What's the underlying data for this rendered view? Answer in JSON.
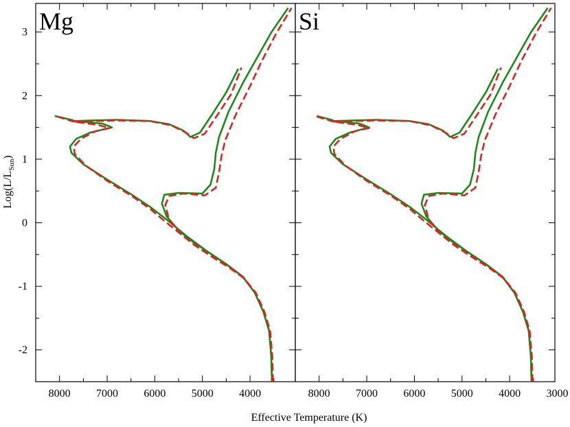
{
  "chart_data": [
    {
      "type": "line",
      "title": "Mg",
      "xlabel": "Effective Temperature (K)",
      "ylabel": "Log(L/L_Sun)",
      "ylabel_parts": {
        "pre": "Log(L/L",
        "sub": "Sun",
        "post": ")"
      },
      "xlim": [
        8500,
        3050
      ],
      "ylim": [
        -2.5,
        3.45
      ],
      "x_ticks": [
        8000,
        7000,
        6000,
        5000,
        4000
      ],
      "y_ticks": [
        -2,
        -1,
        0,
        1,
        2,
        3
      ],
      "x_ticklabels": [
        "8000",
        "7000",
        "6000",
        "5000",
        "4000"
      ],
      "y_ticklabels": [
        "-2",
        "-1",
        "0",
        "1",
        "2",
        "3"
      ],
      "grid": false,
      "series": [
        {
          "color": "#1a8a1a",
          "dash": "solid",
          "points": [
            [
              3540,
              -2.5
            ],
            [
              3555,
              -2.1
            ],
            [
              3600,
              -1.7
            ],
            [
              3720,
              -1.4
            ],
            [
              3900,
              -1.1
            ],
            [
              4150,
              -0.85
            ],
            [
              4500,
              -0.65
            ],
            [
              4900,
              -0.45
            ],
            [
              5350,
              -0.2
            ],
            [
              5750,
              0.05
            ],
            [
              6100,
              0.25
            ],
            [
              6500,
              0.45
            ],
            [
              7000,
              0.68
            ],
            [
              7500,
              0.92
            ],
            [
              7750,
              1.1
            ],
            [
              7780,
              1.2
            ],
            [
              7650,
              1.32
            ],
            [
              7350,
              1.42
            ],
            [
              6900,
              1.5
            ],
            [
              7100,
              1.56
            ],
            [
              7700,
              1.6
            ],
            [
              6800,
              1.62
            ],
            [
              6100,
              1.6
            ],
            [
              5700,
              1.55
            ],
            [
              5400,
              1.45
            ],
            [
              5250,
              1.35
            ],
            [
              5050,
              1.42
            ],
            [
              4800,
              1.7
            ],
            [
              4500,
              2.05
            ],
            [
              4250,
              2.42
            ]
          ]
        },
        {
          "color": "#1a8a1a",
          "dash": "solid",
          "points": [
            [
              8100,
              1.68
            ],
            [
              7700,
              1.61
            ]
          ]
        },
        {
          "color": "#1a8a1a",
          "dash": "solid",
          "points": [
            [
              3540,
              -2.5
            ],
            [
              3555,
              -2.1
            ],
            [
              3600,
              -1.7
            ],
            [
              3720,
              -1.4
            ],
            [
              3900,
              -1.1
            ],
            [
              4150,
              -0.85
            ],
            [
              4500,
              -0.65
            ],
            [
              4800,
              -0.5
            ],
            [
              5200,
              -0.3
            ],
            [
              5500,
              -0.12
            ],
            [
              5750,
              0.1
            ],
            [
              5850,
              0.3
            ],
            [
              5800,
              0.44
            ],
            [
              5500,
              0.47
            ],
            [
              5000,
              0.46
            ],
            [
              4830,
              0.6
            ],
            [
              4750,
              0.85
            ],
            [
              4720,
              1.1
            ],
            [
              4650,
              1.35
            ],
            [
              4450,
              1.75
            ],
            [
              4150,
              2.2
            ],
            [
              3850,
              2.6
            ],
            [
              3550,
              3.0
            ],
            [
              3200,
              3.38
            ]
          ]
        },
        {
          "color": "#dd2222",
          "dash": "dashed",
          "points": [
            [
              3520,
              -2.5
            ],
            [
              3535,
              -2.1
            ],
            [
              3580,
              -1.7
            ],
            [
              3700,
              -1.4
            ],
            [
              3880,
              -1.1
            ],
            [
              4150,
              -0.85
            ],
            [
              4500,
              -0.67
            ],
            [
              4900,
              -0.48
            ],
            [
              5350,
              -0.24
            ],
            [
              5750,
              0.0
            ],
            [
              6100,
              0.22
            ],
            [
              6500,
              0.43
            ],
            [
              7000,
              0.66
            ],
            [
              7450,
              0.9
            ],
            [
              7680,
              1.08
            ],
            [
              7700,
              1.2
            ],
            [
              7550,
              1.32
            ],
            [
              7250,
              1.44
            ],
            [
              6950,
              1.49
            ],
            [
              7200,
              1.54
            ],
            [
              7700,
              1.59
            ],
            [
              6800,
              1.61
            ],
            [
              6100,
              1.6
            ],
            [
              5650,
              1.53
            ],
            [
              5350,
              1.42
            ],
            [
              5180,
              1.33
            ],
            [
              4950,
              1.4
            ],
            [
              4700,
              1.68
            ],
            [
              4400,
              2.02
            ],
            [
              4180,
              2.44
            ]
          ]
        },
        {
          "color": "#dd2222",
          "dash": "dashed",
          "points": [
            [
              8050,
              1.67
            ],
            [
              7700,
              1.59
            ]
          ]
        },
        {
          "color": "#dd2222",
          "dash": "dashed",
          "points": [
            [
              3520,
              -2.5
            ],
            [
              3535,
              -2.1
            ],
            [
              3580,
              -1.7
            ],
            [
              3700,
              -1.4
            ],
            [
              3880,
              -1.1
            ],
            [
              4150,
              -0.86
            ],
            [
              4450,
              -0.7
            ],
            [
              4750,
              -0.56
            ],
            [
              5150,
              -0.36
            ],
            [
              5450,
              -0.18
            ],
            [
              5700,
              0.05
            ],
            [
              5780,
              0.28
            ],
            [
              5700,
              0.42
            ],
            [
              5400,
              0.46
            ],
            [
              4950,
              0.43
            ],
            [
              4720,
              0.55
            ],
            [
              4650,
              0.8
            ],
            [
              4600,
              1.05
            ],
            [
              4520,
              1.3
            ],
            [
              4300,
              1.7
            ],
            [
              4000,
              2.15
            ],
            [
              3750,
              2.55
            ],
            [
              3450,
              2.98
            ],
            [
              3130,
              3.38
            ]
          ]
        }
      ]
    },
    {
      "type": "line",
      "title": "Si",
      "xlabel": "Effective Temperature (K)",
      "xlim": [
        8500,
        3050
      ],
      "ylim": [
        -2.5,
        3.45
      ],
      "x_ticks": [
        8000,
        7000,
        6000,
        5000,
        4000,
        3000
      ],
      "x_ticklabels": [
        "8000",
        "7000",
        "6000",
        "5000",
        "4000",
        "3000"
      ],
      "grid": false,
      "series": [
        {
          "color": "#1a8a1a",
          "dash": "solid",
          "points": [
            [
              3540,
              -2.5
            ],
            [
              3555,
              -2.1
            ],
            [
              3600,
              -1.7
            ],
            [
              3720,
              -1.4
            ],
            [
              3900,
              -1.1
            ],
            [
              4150,
              -0.85
            ],
            [
              4500,
              -0.65
            ],
            [
              4900,
              -0.45
            ],
            [
              5350,
              -0.2
            ],
            [
              5750,
              0.05
            ],
            [
              6100,
              0.25
            ],
            [
              6500,
              0.45
            ],
            [
              7000,
              0.68
            ],
            [
              7500,
              0.92
            ],
            [
              7750,
              1.1
            ],
            [
              7780,
              1.2
            ],
            [
              7650,
              1.32
            ],
            [
              7350,
              1.42
            ],
            [
              6950,
              1.5
            ],
            [
              7150,
              1.56
            ],
            [
              7700,
              1.6
            ],
            [
              6800,
              1.62
            ],
            [
              6100,
              1.6
            ],
            [
              5700,
              1.55
            ],
            [
              5400,
              1.45
            ],
            [
              5250,
              1.35
            ],
            [
              5050,
              1.42
            ],
            [
              4800,
              1.7
            ],
            [
              4500,
              2.05
            ],
            [
              4250,
              2.42
            ]
          ]
        },
        {
          "color": "#1a8a1a",
          "dash": "solid",
          "points": [
            [
              8050,
              1.68
            ],
            [
              7700,
              1.61
            ]
          ]
        },
        {
          "color": "#1a8a1a",
          "dash": "solid",
          "points": [
            [
              3540,
              -2.5
            ],
            [
              3555,
              -2.1
            ],
            [
              3600,
              -1.7
            ],
            [
              3720,
              -1.4
            ],
            [
              3900,
              -1.1
            ],
            [
              4150,
              -0.85
            ],
            [
              4500,
              -0.65
            ],
            [
              4800,
              -0.5
            ],
            [
              5200,
              -0.3
            ],
            [
              5500,
              -0.12
            ],
            [
              5750,
              0.1
            ],
            [
              5850,
              0.3
            ],
            [
              5800,
              0.44
            ],
            [
              5500,
              0.47
            ],
            [
              5000,
              0.46
            ],
            [
              4830,
              0.6
            ],
            [
              4750,
              0.85
            ],
            [
              4720,
              1.1
            ],
            [
              4650,
              1.35
            ],
            [
              4450,
              1.75
            ],
            [
              4150,
              2.2
            ],
            [
              3850,
              2.6
            ],
            [
              3550,
              3.0
            ],
            [
              3200,
              3.38
            ]
          ]
        },
        {
          "color": "#dd2222",
          "dash": "dashed",
          "points": [
            [
              3520,
              -2.5
            ],
            [
              3535,
              -2.1
            ],
            [
              3580,
              -1.7
            ],
            [
              3700,
              -1.4
            ],
            [
              3880,
              -1.1
            ],
            [
              4150,
              -0.85
            ],
            [
              4500,
              -0.67
            ],
            [
              4900,
              -0.48
            ],
            [
              5350,
              -0.24
            ],
            [
              5750,
              0.0
            ],
            [
              6100,
              0.22
            ],
            [
              6500,
              0.43
            ],
            [
              7000,
              0.66
            ],
            [
              7450,
              0.9
            ],
            [
              7680,
              1.08
            ],
            [
              7700,
              1.2
            ],
            [
              7550,
              1.32
            ],
            [
              7250,
              1.44
            ],
            [
              6950,
              1.49
            ],
            [
              7200,
              1.54
            ],
            [
              7700,
              1.59
            ],
            [
              6800,
              1.61
            ],
            [
              6100,
              1.6
            ],
            [
              5650,
              1.53
            ],
            [
              5350,
              1.42
            ],
            [
              5180,
              1.33
            ],
            [
              4950,
              1.4
            ],
            [
              4700,
              1.68
            ],
            [
              4400,
              2.02
            ],
            [
              4180,
              2.44
            ]
          ]
        },
        {
          "color": "#dd2222",
          "dash": "dashed",
          "points": [
            [
              8050,
              1.67
            ],
            [
              7700,
              1.59
            ]
          ]
        },
        {
          "color": "#dd2222",
          "dash": "dashed",
          "points": [
            [
              3520,
              -2.5
            ],
            [
              3535,
              -2.1
            ],
            [
              3580,
              -1.7
            ],
            [
              3700,
              -1.4
            ],
            [
              3880,
              -1.1
            ],
            [
              4150,
              -0.86
            ],
            [
              4450,
              -0.7
            ],
            [
              4750,
              -0.56
            ],
            [
              5150,
              -0.36
            ],
            [
              5450,
              -0.18
            ],
            [
              5700,
              0.05
            ],
            [
              5780,
              0.28
            ],
            [
              5700,
              0.42
            ],
            [
              5400,
              0.46
            ],
            [
              4950,
              0.43
            ],
            [
              4720,
              0.55
            ],
            [
              4650,
              0.8
            ],
            [
              4600,
              1.05
            ],
            [
              4520,
              1.3
            ],
            [
              4300,
              1.7
            ],
            [
              4000,
              2.15
            ],
            [
              3750,
              2.55
            ],
            [
              3450,
              2.98
            ],
            [
              3130,
              3.38
            ]
          ]
        }
      ]
    }
  ]
}
